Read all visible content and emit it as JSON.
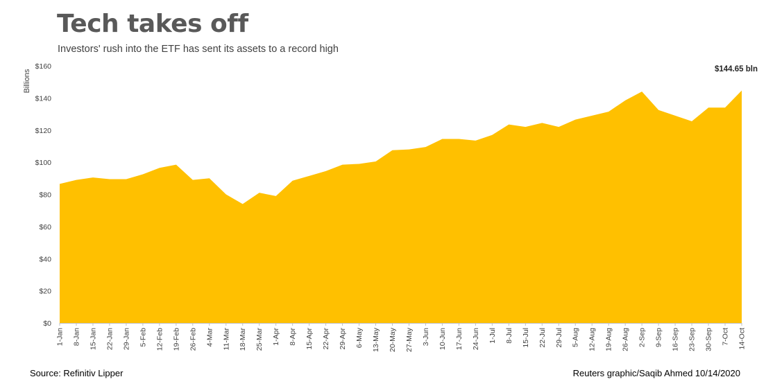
{
  "title": "Tech takes off",
  "subtitle": "Investors' rush into the ETF has sent its assets to a record high",
  "source": "Source: Refinitiv Lipper",
  "credit": "Reuters graphic/Saqib Ahmed  10/14/2020",
  "colors": {
    "fill": "#FFC000",
    "axis": "#BFBFBF",
    "text": "#404040"
  },
  "chart_data": {
    "type": "area",
    "title": "Tech takes off",
    "subtitle": "Investors' rush into the ETF has sent its assets to a record high",
    "xlabel": "",
    "ylabel": "Billions",
    "ylim": [
      0,
      160
    ],
    "yticks": [
      0,
      20,
      40,
      60,
      80,
      100,
      120,
      140,
      160
    ],
    "ytick_labels": [
      "$0",
      "$20",
      "$40",
      "$60",
      "$80",
      "$100",
      "$120",
      "$140",
      "$160"
    ],
    "grid": false,
    "categories": [
      "1-Jan",
      "8-Jan",
      "15-Jan",
      "22-Jan",
      "29-Jan",
      "5-Feb",
      "12-Feb",
      "19-Feb",
      "26-Feb",
      "4-Mar",
      "11-Mar",
      "18-Mar",
      "25-Mar",
      "1-Apr",
      "8-Apr",
      "15-Apr",
      "22-Apr",
      "29-Apr",
      "6-May",
      "13-May",
      "20-May",
      "27-May",
      "3-Jun",
      "10-Jun",
      "17-Jun",
      "24-Jun",
      "1-Jul",
      "8-Jul",
      "15-Jul",
      "22-Jul",
      "29-Jul",
      "5-Aug",
      "12-Aug",
      "19-Aug",
      "26-Aug",
      "2-Sep",
      "9-Sep",
      "16-Sep",
      "23-Sep",
      "30-Sep",
      "7-Oct",
      "14-Oct"
    ],
    "values": [
      86.5,
      89,
      90.5,
      89.5,
      89.5,
      92.5,
      96.5,
      98.5,
      89,
      90,
      80,
      74,
      81,
      79,
      88.5,
      91.5,
      94.5,
      98.5,
      99,
      100.5,
      107.5,
      108,
      109.5,
      114.5,
      114.5,
      113.5,
      117,
      123.5,
      122,
      124.5,
      122,
      126.5,
      129,
      131.5,
      138.5,
      144,
      132.5,
      129,
      125.5,
      134,
      134,
      144.65
    ],
    "annotations": [
      {
        "text": "$144.65 bln",
        "category": "14-Oct"
      }
    ]
  }
}
